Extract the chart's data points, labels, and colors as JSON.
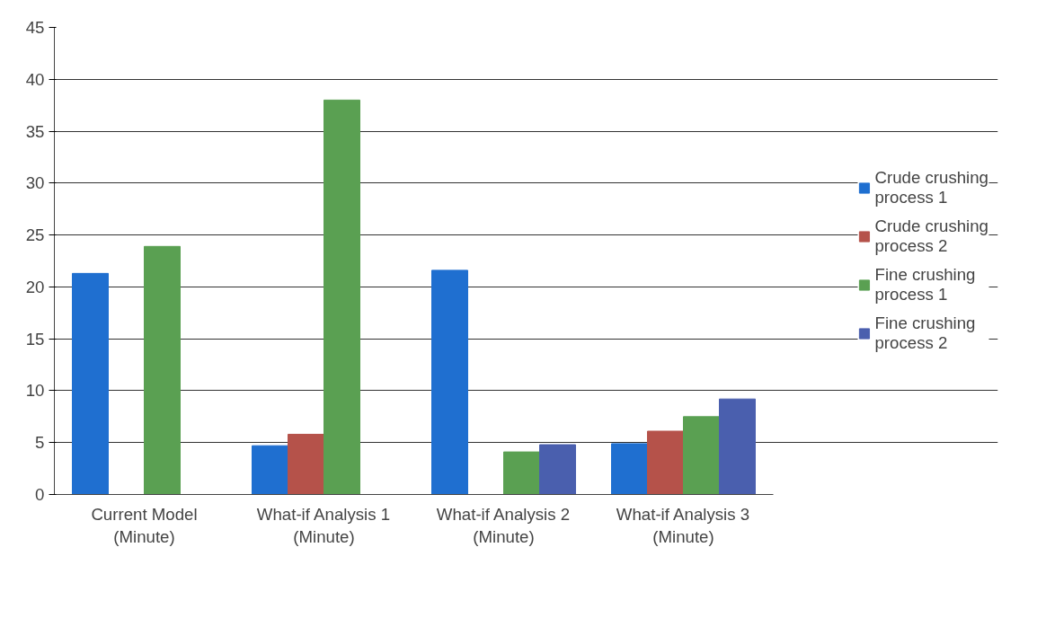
{
  "chart_data": {
    "type": "bar",
    "categories": [
      "Current Model\n(Minute)",
      "What-if Analysis 1\n(Minute)",
      "What-if Analysis 2\n(Minute)",
      "What-if Analysis 3\n(Minute)"
    ],
    "series": [
      {
        "name": "Crude crushing process 1",
        "color": "#1f6fd0",
        "values": [
          21.3,
          4.7,
          21.6,
          4.9
        ]
      },
      {
        "name": "Crude crushing process 2",
        "color": "#b5524a",
        "values": [
          null,
          5.8,
          null,
          6.1
        ]
      },
      {
        "name": "Fine crushing process 1",
        "color": "#5aa052",
        "values": [
          23.9,
          38.0,
          4.1,
          7.5
        ]
      },
      {
        "name": "Fine crushing process 2",
        "color": "#4a5fae",
        "values": [
          null,
          null,
          4.8,
          9.2
        ]
      }
    ],
    "ylim": [
      0,
      45
    ],
    "yticks": [
      0,
      5,
      10,
      15,
      20,
      25,
      30,
      35,
      40,
      45
    ],
    "grid": "y",
    "legend": "right"
  }
}
